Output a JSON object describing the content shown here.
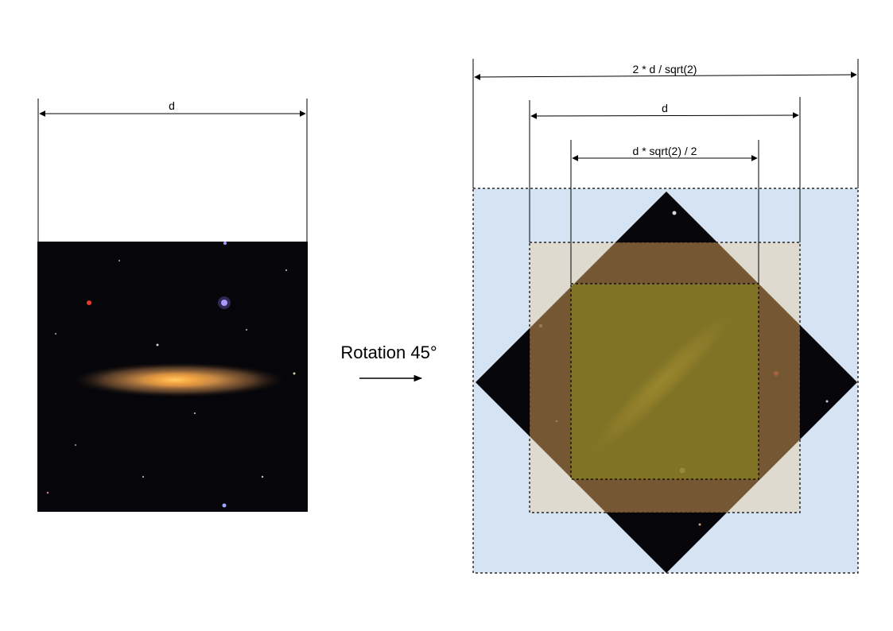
{
  "left_panel": {
    "dimension_label": "d"
  },
  "transition": {
    "label": "Rotation 45°"
  },
  "right_panel": {
    "outer_dimension_label": "2 * d / sqrt(2)",
    "middle_dimension_label": "d",
    "inner_dimension_label": "d * sqrt(2) / 2"
  },
  "colors": {
    "outer_box_fill": "#d6e3f3",
    "middle_box_fill": "#e6d3b3",
    "inner_box_tint": "#7b7b1a",
    "diamond_tint": "#5a3508",
    "sky": "#05050a"
  }
}
